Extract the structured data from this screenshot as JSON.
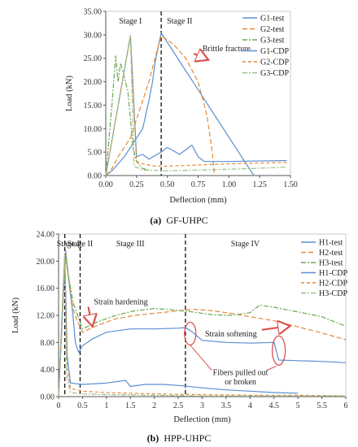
{
  "chart_data": [
    {
      "type": "line",
      "caption_label": "(a)",
      "caption_text": "GF-UHPC",
      "xlabel": "Deflection (mm)",
      "ylabel": "Load (kN)",
      "xlim": [
        0,
        1.5
      ],
      "ylim": [
        0,
        35
      ],
      "xticks": [
        "0.00",
        "0.25",
        "0.50",
        "0.75",
        "1.00",
        "1.25",
        "1.50"
      ],
      "yticks": [
        "0.00",
        "5.00",
        "10.00",
        "15.00",
        "20.00",
        "25.00",
        "30.00",
        "35.00"
      ],
      "stage_lines": [
        0.45
      ],
      "stages": [
        {
          "label": "Stage I",
          "x": 0.2
        },
        {
          "label": "Stage II",
          "x": 0.6
        }
      ],
      "annotations": [
        {
          "text": "Brittle fracture",
          "x": 0.98,
          "y": 26.5,
          "arrow_to": [
            0.82,
            24.8
          ]
        }
      ],
      "legend_position": "top-right",
      "series": [
        {
          "name": "G1-test",
          "color": "#5b8fd1",
          "dash": "solid",
          "x": [
            0,
            0.05,
            0.1,
            0.15,
            0.2,
            0.25,
            0.3,
            0.35,
            0.38,
            0.4,
            0.43,
            0.45,
            1.2,
            1.2
          ],
          "y": [
            0,
            1,
            2.5,
            4,
            6,
            8,
            10,
            16,
            20,
            24,
            28,
            30.4,
            0.1,
            0
          ]
        },
        {
          "name": "G2-test",
          "color": "#e5883a",
          "dash": "6,3",
          "x": [
            0,
            0.05,
            0.1,
            0.15,
            0.2,
            0.25,
            0.3,
            0.35,
            0.4,
            0.45,
            0.55,
            0.65,
            0.75,
            0.82,
            0.86,
            0.88,
            0.88
          ],
          "y": [
            0,
            1.5,
            4,
            6,
            8,
            12,
            16,
            20,
            25,
            29.8,
            28,
            25,
            20,
            13,
            6,
            1,
            0
          ]
        },
        {
          "name": "G3-test",
          "color": "#6aa84f",
          "dash": "6,2,2,2",
          "x": [
            0,
            0.05,
            0.08,
            0.1,
            0.12,
            0.15,
            0.18,
            0.2,
            0.22,
            0.25,
            0.3,
            0.35
          ],
          "y": [
            0,
            15,
            25.5,
            20,
            24,
            21,
            18,
            12,
            6,
            3,
            1.5,
            1.2
          ]
        },
        {
          "name": "G1-CDP",
          "color": "#5b8fd1",
          "dash": "solid",
          "x": [
            0,
            0.2,
            0.25,
            0.3,
            0.35,
            0.45,
            0.5,
            0.6,
            0.7,
            0.72,
            0.75,
            0.8,
            1.0,
            1.47
          ],
          "y": [
            0,
            29.8,
            4,
            4.5,
            3.5,
            5,
            6,
            4.5,
            6.5,
            5.5,
            4,
            3,
            3,
            3.2
          ]
        },
        {
          "name": "G2-CDP",
          "color": "#e5883a",
          "dash": "4,3",
          "x": [
            0,
            0.2,
            0.25,
            0.3,
            0.4,
            0.5,
            0.7,
            1.0,
            1.47
          ],
          "y": [
            0,
            29.8,
            3,
            2.5,
            2,
            2,
            2.2,
            2.5,
            2.8
          ]
        },
        {
          "name": "G3-CDP",
          "color": "#9bbf85",
          "dash": "6,2,2,2",
          "x": [
            0,
            0.2,
            0.23,
            0.3,
            0.5,
            0.8,
            1.2,
            1.47
          ],
          "y": [
            0,
            29.8,
            2,
            1.2,
            1,
            1.2,
            1.5,
            1.8
          ]
        }
      ]
    },
    {
      "type": "line",
      "caption_label": "(b)",
      "caption_text": "HPP-UHPC",
      "xlabel": "Deflection (mm)",
      "ylabel": "Load (kN)",
      "xlim": [
        0,
        6
      ],
      "ylim": [
        0,
        24
      ],
      "xticks": [
        "0",
        "0.5",
        "1",
        "1.5",
        "2",
        "2.5",
        "3",
        "3.5",
        "4",
        "4.5",
        "5",
        "5.5",
        "6"
      ],
      "yticks": [
        "0.00",
        "4.00",
        "8.00",
        "12.00",
        "16.00",
        "20.00",
        "24.00"
      ],
      "stage_lines": [
        0.13,
        0.45,
        2.65
      ],
      "stages": [
        {
          "label": "Stage I",
          "x": 0.2
        },
        {
          "label": "Stage II",
          "x": 0.45
        },
        {
          "label": "Stage III",
          "x": 1.5
        },
        {
          "label": "Stage IV",
          "x": 3.9
        }
      ],
      "annotations": [
        {
          "text": "Strain hardening",
          "x": 1.3,
          "y": 13.6,
          "arrow_to": [
            0.7,
            10.6
          ]
        },
        {
          "text": "Strain softening",
          "x": 3.6,
          "y": 8.9,
          "arrow_to": [
            4.8,
            10.4
          ]
        },
        {
          "text": "Fibers pulled out",
          "x": 3.8,
          "y": 3.2,
          "arrow_to": null
        },
        {
          "text": "or broken",
          "x": 3.8,
          "y": 1.8,
          "arrow_to": null
        }
      ],
      "legend_position": "top-right",
      "series": [
        {
          "name": "H1-test",
          "color": "#5b8fd1",
          "dash": "solid",
          "x": [
            0,
            0.1,
            0.15,
            0.2,
            0.3,
            0.35,
            0.42,
            0.5,
            0.7,
            1.0,
            1.5,
            2.0,
            2.5,
            2.65,
            2.8,
            3.0,
            3.5,
            4.0,
            4.5,
            4.6,
            5.0,
            5.5,
            6.0
          ],
          "y": [
            0,
            15,
            21.5,
            18,
            12,
            8,
            6.5,
            7.5,
            8.5,
            9.5,
            10,
            10,
            10.1,
            10.2,
            9.5,
            8.3,
            8.0,
            7.9,
            8.0,
            5.4,
            5.3,
            5.2,
            5.0
          ]
        },
        {
          "name": "H2-test",
          "color": "#e5883a",
          "dash": "6,3",
          "x": [
            0,
            0.1,
            0.15,
            0.2,
            0.3,
            0.4,
            0.5,
            0.8,
            1.2,
            1.6,
            2.0,
            2.4,
            2.8,
            3.2,
            3.6,
            4.0,
            4.5,
            5.0,
            5.5,
            6.0
          ],
          "y": [
            0,
            16,
            21,
            18,
            13,
            11,
            9.5,
            10.5,
            11.5,
            12,
            12.3,
            12.6,
            12.9,
            12.7,
            12.3,
            11.8,
            11.2,
            10.3,
            9.4,
            8.4
          ]
        },
        {
          "name": "H3-test",
          "color": "#6aa84f",
          "dash": "6,2,2,2",
          "x": [
            0,
            0.1,
            0.15,
            0.2,
            0.3,
            0.4,
            0.5,
            0.8,
            1.2,
            1.6,
            2.0,
            2.4,
            2.8,
            3.2,
            3.6,
            4.0,
            4.2,
            4.5,
            5.0,
            5.5,
            6.0
          ],
          "y": [
            0,
            16,
            20.5,
            18,
            14,
            12,
            10,
            11,
            12,
            12.7,
            13.0,
            12.8,
            12.5,
            12.1,
            12.0,
            12.4,
            13.5,
            13.2,
            12.5,
            11.8,
            10.4
          ]
        },
        {
          "name": "H1-CDP",
          "color": "#5b8fd1",
          "dash": "solid",
          "x": [
            0,
            0.13,
            0.18,
            0.25,
            0.5,
            1.0,
            1.4,
            1.5,
            1.8,
            2.2,
            2.6,
            3.0,
            3.5,
            4.0,
            4.5,
            5.0
          ],
          "y": [
            0,
            21,
            6,
            2,
            1.8,
            2,
            2.4,
            1.5,
            1.8,
            1.8,
            1.6,
            1.3,
            1.0,
            0.8,
            0.6,
            0.5
          ]
        },
        {
          "name": "H2-CDP",
          "color": "#e5883a",
          "dash": "4,3",
          "x": [
            0,
            0.13,
            0.18,
            0.25,
            0.5,
            1.0,
            2.0,
            3.0,
            4.0,
            5.0,
            6.0
          ],
          "y": [
            0,
            21,
            4,
            1.2,
            0.8,
            0.6,
            0.4,
            0.3,
            0.2,
            0.2,
            0.1
          ]
        },
        {
          "name": "H3-CDP",
          "color": "#9bbf85",
          "dash": "6,2,2,2",
          "x": [
            0,
            0.13,
            0.17,
            0.25,
            0.5,
            1.0,
            2.0,
            3.0,
            4.0,
            5.0,
            6.0
          ],
          "y": [
            0,
            21,
            3,
            0.6,
            0.4,
            0.3,
            0.2,
            0.1,
            0.1,
            0.1,
            0.1
          ]
        }
      ]
    }
  ]
}
